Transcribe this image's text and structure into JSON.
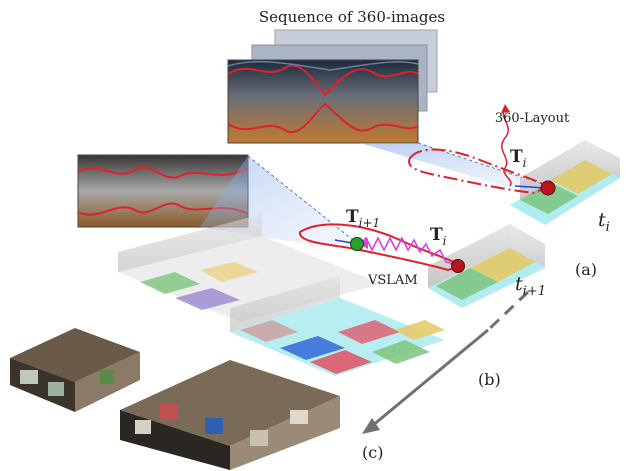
{
  "title": "Sequence of 360-images",
  "labels": {
    "layout": "360-Layout",
    "vslam": "VSLAM",
    "pose_i_upper": "T",
    "pose_i_upper_sub": "i",
    "pose_i_lower": "T",
    "pose_i_lower_sub": "i",
    "pose_i1": "T",
    "pose_i1_sub": "i+1",
    "time_i": "t",
    "time_i_sub": "i",
    "time_i1": "t",
    "time_i1_sub": "i+1",
    "panel_a": "(a)",
    "panel_b": "(b)",
    "panel_c": "(c)"
  },
  "colors": {
    "layout_outline": "#e0202a",
    "trajectory": "#e040e0",
    "pose_marker_red": "#b5151b",
    "pose_marker_green": "#2d9d2d",
    "room_yellow": "#e8c860",
    "room_green": "#7cc47c",
    "room_blue": "#3a6fd8",
    "room_red": "#e05060",
    "room_purple": "#9a86d0",
    "floor_cyan": "#7de0e8",
    "wall_gray": "#c8c8c8",
    "arrow_gray": "#707070"
  }
}
